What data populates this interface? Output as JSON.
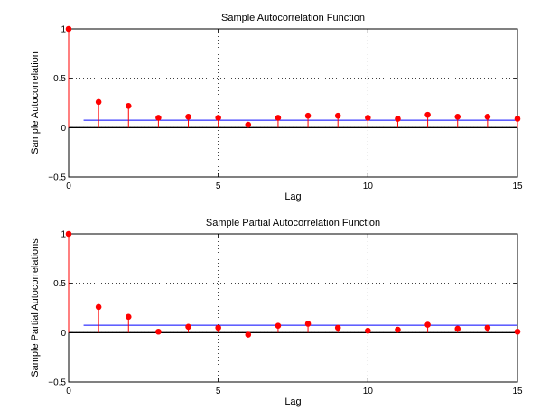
{
  "chart_data": [
    {
      "type": "stem",
      "title": "Sample Autocorrelation Function",
      "xlabel": "Lag",
      "ylabel": "Sample Autocorrelation",
      "xlim": [
        0,
        15
      ],
      "ylim": [
        -0.5,
        1
      ],
      "xticks": [
        "0",
        "5",
        "10",
        "15"
      ],
      "yticks": [
        "−0.5",
        "0",
        "0.5",
        "1"
      ],
      "grid": "dotted",
      "x": [
        0,
        1,
        2,
        3,
        4,
        5,
        6,
        7,
        8,
        9,
        10,
        11,
        12,
        13,
        14,
        15
      ],
      "values": [
        1.0,
        0.26,
        0.22,
        0.1,
        0.11,
        0.1,
        0.03,
        0.1,
        0.12,
        0.12,
        0.1,
        0.09,
        0.13,
        0.11,
        0.11,
        0.09
      ],
      "bounds": [
        0.075,
        -0.075
      ],
      "colors": {
        "stem": "#ff0000",
        "marker": "#ff0000",
        "bounds": "#0000ff",
        "zero": "#000000"
      }
    },
    {
      "type": "stem",
      "title": "Sample Partial Autocorrelation Function",
      "xlabel": "Lag",
      "ylabel": "Sample Partial Autocorrelations",
      "xlim": [
        0,
        15
      ],
      "ylim": [
        -0.5,
        1
      ],
      "xticks": [
        "0",
        "5",
        "10",
        "15"
      ],
      "yticks": [
        "−0.5",
        "0",
        "0.5",
        "1"
      ],
      "grid": "dotted",
      "x": [
        0,
        1,
        2,
        3,
        4,
        5,
        6,
        7,
        8,
        9,
        10,
        11,
        12,
        13,
        14,
        15
      ],
      "values": [
        1.0,
        0.26,
        0.16,
        0.01,
        0.06,
        0.05,
        -0.02,
        0.07,
        0.09,
        0.05,
        0.02,
        0.03,
        0.08,
        0.04,
        0.05,
        0.01
      ],
      "bounds": [
        0.075,
        -0.075
      ],
      "colors": {
        "stem": "#ff0000",
        "marker": "#ff0000",
        "bounds": "#0000ff",
        "zero": "#000000"
      }
    }
  ]
}
